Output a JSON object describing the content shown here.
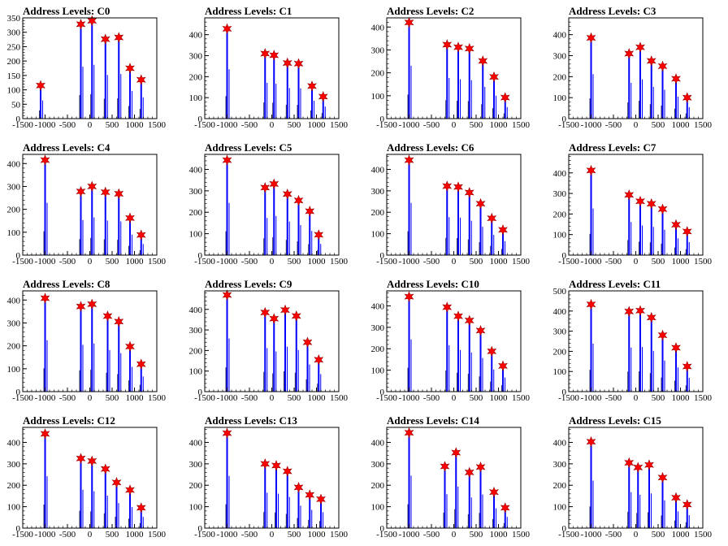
{
  "figure_colors": {
    "spike": "#0000ff",
    "marker": "#ff0000",
    "axis": "#000000"
  },
  "chart_data": [
    {
      "type": "bar",
      "title": "Address Levels: C0",
      "xlim": [
        -1500,
        1500
      ],
      "ylim": [
        0,
        350
      ],
      "yticks": [
        0,
        50,
        100,
        150,
        200,
        250,
        300,
        350
      ],
      "xticks": [
        -1500,
        -1000,
        -500,
        0,
        500,
        1000,
        1500
      ],
      "peaks": [
        {
          "x": -1100,
          "y": 115
        },
        {
          "x": -200,
          "y": 328
        },
        {
          "x": 50,
          "y": 340
        },
        {
          "x": 350,
          "y": 276
        },
        {
          "x": 650,
          "y": 282
        },
        {
          "x": 900,
          "y": 175
        },
        {
          "x": 1150,
          "y": 135
        }
      ]
    },
    {
      "type": "bar",
      "title": "Address Levels: C1",
      "xlim": [
        -1500,
        1500
      ],
      "ylim": [
        0,
        480
      ],
      "yticks": [
        0,
        100,
        200,
        300,
        400
      ],
      "xticks": [
        -1500,
        -1000,
        -500,
        0,
        500,
        1000,
        1500
      ],
      "peaks": [
        {
          "x": -1000,
          "y": 428
        },
        {
          "x": -150,
          "y": 310
        },
        {
          "x": 50,
          "y": 302
        },
        {
          "x": 350,
          "y": 265
        },
        {
          "x": 600,
          "y": 262
        },
        {
          "x": 900,
          "y": 155
        },
        {
          "x": 1150,
          "y": 105
        }
      ]
    },
    {
      "type": "bar",
      "title": "Address Levels: C2",
      "xlim": [
        -1500,
        1500
      ],
      "ylim": [
        0,
        440
      ],
      "yticks": [
        0,
        100,
        200,
        300,
        400
      ],
      "xticks": [
        -1500,
        -1000,
        -500,
        0,
        500,
        1000,
        1500
      ],
      "peaks": [
        {
          "x": -1000,
          "y": 420
        },
        {
          "x": -150,
          "y": 323
        },
        {
          "x": 100,
          "y": 312
        },
        {
          "x": 350,
          "y": 306
        },
        {
          "x": 650,
          "y": 252
        },
        {
          "x": 900,
          "y": 182
        },
        {
          "x": 1150,
          "y": 92
        }
      ]
    },
    {
      "type": "bar",
      "title": "Address Levels: C3",
      "xlim": [
        -1500,
        1500
      ],
      "ylim": [
        0,
        480
      ],
      "yticks": [
        0,
        100,
        200,
        300,
        400
      ],
      "xticks": [
        -1500,
        -1000,
        -500,
        0,
        500,
        1000,
        1500
      ],
      "peaks": [
        {
          "x": -1000,
          "y": 385
        },
        {
          "x": -150,
          "y": 310
        },
        {
          "x": 100,
          "y": 340
        },
        {
          "x": 350,
          "y": 275
        },
        {
          "x": 600,
          "y": 250
        },
        {
          "x": 900,
          "y": 190
        },
        {
          "x": 1150,
          "y": 100
        }
      ]
    },
    {
      "type": "bar",
      "title": "Address Levels: C4",
      "xlim": [
        -1500,
        1500
      ],
      "ylim": [
        0,
        440
      ],
      "yticks": [
        0,
        100,
        200,
        300,
        400
      ],
      "xticks": [
        -1500,
        -1000,
        -500,
        0,
        500,
        1000,
        1500
      ],
      "peaks": [
        {
          "x": -1000,
          "y": 415
        },
        {
          "x": -200,
          "y": 278
        },
        {
          "x": 50,
          "y": 300
        },
        {
          "x": 350,
          "y": 275
        },
        {
          "x": 650,
          "y": 268
        },
        {
          "x": 900,
          "y": 162
        },
        {
          "x": 1150,
          "y": 88
        }
      ]
    },
    {
      "type": "bar",
      "title": "Address Levels: C5",
      "xlim": [
        -1500,
        1500
      ],
      "ylim": [
        0,
        470
      ],
      "yticks": [
        0,
        100,
        200,
        300,
        400
      ],
      "xticks": [
        -1500,
        -1000,
        -500,
        0,
        500,
        1000,
        1500
      ],
      "peaks": [
        {
          "x": -1000,
          "y": 443
        },
        {
          "x": -150,
          "y": 315
        },
        {
          "x": 50,
          "y": 332
        },
        {
          "x": 350,
          "y": 285
        },
        {
          "x": 600,
          "y": 255
        },
        {
          "x": 850,
          "y": 205
        },
        {
          "x": 1050,
          "y": 95
        }
      ]
    },
    {
      "type": "bar",
      "title": "Address Levels: C6",
      "xlim": [
        -1500,
        1500
      ],
      "ylim": [
        0,
        470
      ],
      "yticks": [
        0,
        100,
        200,
        300,
        400
      ],
      "xticks": [
        -1500,
        -1000,
        -500,
        0,
        500,
        1000,
        1500
      ],
      "peaks": [
        {
          "x": -1000,
          "y": 443
        },
        {
          "x": -150,
          "y": 322
        },
        {
          "x": 100,
          "y": 318
        },
        {
          "x": 350,
          "y": 292
        },
        {
          "x": 600,
          "y": 240
        },
        {
          "x": 850,
          "y": 172
        },
        {
          "x": 1100,
          "y": 118
        }
      ]
    },
    {
      "type": "bar",
      "title": "Address Levels: C7",
      "xlim": [
        -1500,
        1500
      ],
      "ylim": [
        0,
        490
      ],
      "yticks": [
        0,
        100,
        200,
        300,
        400
      ],
      "xticks": [
        -1500,
        -1000,
        -500,
        0,
        500,
        1000,
        1500
      ],
      "peaks": [
        {
          "x": -1000,
          "y": 412
        },
        {
          "x": -150,
          "y": 293
        },
        {
          "x": 100,
          "y": 262
        },
        {
          "x": 350,
          "y": 250
        },
        {
          "x": 600,
          "y": 224
        },
        {
          "x": 900,
          "y": 148
        },
        {
          "x": 1150,
          "y": 115
        }
      ]
    },
    {
      "type": "bar",
      "title": "Address Levels: C8",
      "xlim": [
        -1500,
        1500
      ],
      "ylim": [
        0,
        440
      ],
      "yticks": [
        0,
        100,
        200,
        300,
        400
      ],
      "xticks": [
        -1500,
        -1000,
        -500,
        0,
        500,
        1000,
        1500
      ],
      "peaks": [
        {
          "x": -1000,
          "y": 408
        },
        {
          "x": -200,
          "y": 372
        },
        {
          "x": 50,
          "y": 382
        },
        {
          "x": 400,
          "y": 330
        },
        {
          "x": 650,
          "y": 306
        },
        {
          "x": 900,
          "y": 197
        },
        {
          "x": 1150,
          "y": 120
        }
      ]
    },
    {
      "type": "bar",
      "title": "Address Levels: C9",
      "xlim": [
        -1500,
        1500
      ],
      "ylim": [
        0,
        490
      ],
      "yticks": [
        0,
        100,
        200,
        300,
        400
      ],
      "xticks": [
        -1500,
        -1000,
        -500,
        0,
        500,
        1000,
        1500
      ],
      "peaks": [
        {
          "x": -1000,
          "y": 470
        },
        {
          "x": -150,
          "y": 385
        },
        {
          "x": 50,
          "y": 355
        },
        {
          "x": 300,
          "y": 397
        },
        {
          "x": 550,
          "y": 368
        },
        {
          "x": 800,
          "y": 240
        },
        {
          "x": 1050,
          "y": 155
        }
      ]
    },
    {
      "type": "bar",
      "title": "Address Levels: C10",
      "xlim": [
        -1500,
        1500
      ],
      "ylim": [
        0,
        470
      ],
      "yticks": [
        0,
        100,
        200,
        300,
        400
      ],
      "xticks": [
        -1500,
        -1000,
        -500,
        0,
        500,
        1000,
        1500
      ],
      "peaks": [
        {
          "x": -1000,
          "y": 443
        },
        {
          "x": -150,
          "y": 394
        },
        {
          "x": 100,
          "y": 352
        },
        {
          "x": 350,
          "y": 332
        },
        {
          "x": 600,
          "y": 285
        },
        {
          "x": 850,
          "y": 188
        },
        {
          "x": 1100,
          "y": 120
        }
      ]
    },
    {
      "type": "bar",
      "title": "Address Levels: C11",
      "xlim": [
        -1500,
        1500
      ],
      "ylim": [
        0,
        500
      ],
      "yticks": [
        0,
        100,
        200,
        300,
        400,
        500
      ],
      "xticks": [
        -1500,
        -1000,
        -500,
        0,
        500,
        1000,
        1500
      ],
      "peaks": [
        {
          "x": -1000,
          "y": 433
        },
        {
          "x": -150,
          "y": 398
        },
        {
          "x": 100,
          "y": 402
        },
        {
          "x": 350,
          "y": 368
        },
        {
          "x": 600,
          "y": 280
        },
        {
          "x": 900,
          "y": 218
        },
        {
          "x": 1150,
          "y": 125
        }
      ]
    },
    {
      "type": "bar",
      "title": "Address Levels: C12",
      "xlim": [
        -1500,
        1500
      ],
      "ylim": [
        0,
        470
      ],
      "yticks": [
        0,
        100,
        200,
        300,
        400
      ],
      "xticks": [
        -1500,
        -1000,
        -500,
        0,
        500,
        1000,
        1500
      ],
      "peaks": [
        {
          "x": -1000,
          "y": 440
        },
        {
          "x": -200,
          "y": 325
        },
        {
          "x": 50,
          "y": 313
        },
        {
          "x": 350,
          "y": 276
        },
        {
          "x": 600,
          "y": 213
        },
        {
          "x": 900,
          "y": 178
        },
        {
          "x": 1150,
          "y": 95
        }
      ]
    },
    {
      "type": "bar",
      "title": "Address Levels: C13",
      "xlim": [
        -1500,
        1500
      ],
      "ylim": [
        0,
        470
      ],
      "yticks": [
        0,
        100,
        200,
        300,
        400
      ],
      "xticks": [
        -1500,
        -1000,
        -500,
        0,
        500,
        1000,
        1500
      ],
      "peaks": [
        {
          "x": -1000,
          "y": 443
        },
        {
          "x": -150,
          "y": 300
        },
        {
          "x": 100,
          "y": 292
        },
        {
          "x": 350,
          "y": 265
        },
        {
          "x": 600,
          "y": 190
        },
        {
          "x": 850,
          "y": 155
        },
        {
          "x": 1100,
          "y": 135
        }
      ]
    },
    {
      "type": "bar",
      "title": "Address Levels: C14",
      "xlim": [
        -1500,
        1500
      ],
      "ylim": [
        0,
        470
      ],
      "yticks": [
        0,
        100,
        200,
        300,
        400
      ],
      "xticks": [
        -1500,
        -1000,
        -500,
        0,
        500,
        1000,
        1500
      ],
      "peaks": [
        {
          "x": -1000,
          "y": 445
        },
        {
          "x": -200,
          "y": 288
        },
        {
          "x": 50,
          "y": 352
        },
        {
          "x": 350,
          "y": 260
        },
        {
          "x": 600,
          "y": 285
        },
        {
          "x": 900,
          "y": 168
        },
        {
          "x": 1150,
          "y": 95
        }
      ]
    },
    {
      "type": "bar",
      "title": "Address Levels: C15",
      "xlim": [
        -1500,
        1500
      ],
      "ylim": [
        0,
        470
      ],
      "yticks": [
        0,
        100,
        200,
        300,
        400
      ],
      "xticks": [
        -1500,
        -1000,
        -500,
        0,
        500,
        1000,
        1500
      ],
      "peaks": [
        {
          "x": -1000,
          "y": 403
        },
        {
          "x": -150,
          "y": 305
        },
        {
          "x": 50,
          "y": 283
        },
        {
          "x": 300,
          "y": 295
        },
        {
          "x": 600,
          "y": 236
        },
        {
          "x": 900,
          "y": 142
        },
        {
          "x": 1150,
          "y": 110
        }
      ]
    }
  ]
}
